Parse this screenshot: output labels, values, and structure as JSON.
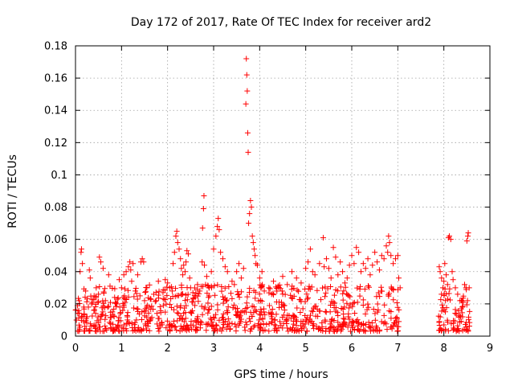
{
  "chart_data": {
    "type": "scatter",
    "title": "Day 172 of 2017, Rate Of TEC Index for receiver ard2",
    "xlabel": "GPS time / hours",
    "ylabel": "ROTI / TECUs",
    "xlim": [
      0,
      9
    ],
    "ylim": [
      0,
      0.18
    ],
    "x_ticks": [
      0,
      1,
      2,
      3,
      4,
      5,
      6,
      7,
      8,
      9
    ],
    "x_tick_labels": [
      "0",
      "1",
      "2",
      "3",
      "4",
      "5",
      "6",
      "7",
      "8",
      "9"
    ],
    "y_ticks": [
      0,
      0.02,
      0.04,
      0.06,
      0.08,
      0.1,
      0.12,
      0.14,
      0.16,
      0.18
    ],
    "y_tick_labels": [
      "0",
      "0.02",
      "0.04",
      "0.06",
      "0.08",
      "0.1",
      "0.12",
      "0.14",
      "0.16",
      "0.18"
    ],
    "grid": true,
    "marker": "plus",
    "series_color": "#ff0000",
    "series": [
      {
        "name": "ROTI",
        "points": [
          [
            0.02,
            0.01
          ],
          [
            0.05,
            0.014
          ],
          [
            0.08,
            0.022
          ],
          [
            0.1,
            0.04
          ],
          [
            0.12,
            0.052
          ],
          [
            0.13,
            0.054
          ],
          [
            0.15,
            0.045
          ],
          [
            0.18,
            0.018
          ],
          [
            0.22,
            0.028
          ],
          [
            0.25,
            0.012
          ],
          [
            0.3,
            0.041
          ],
          [
            0.32,
            0.036
          ],
          [
            0.35,
            0.02
          ],
          [
            0.4,
            0.016
          ],
          [
            0.45,
            0.03
          ],
          [
            0.5,
            0.026
          ],
          [
            0.52,
            0.049
          ],
          [
            0.55,
            0.046
          ],
          [
            0.6,
            0.042
          ],
          [
            0.65,
            0.022
          ],
          [
            0.7,
            0.018
          ],
          [
            0.72,
            0.038
          ],
          [
            0.75,
            0.031
          ],
          [
            0.8,
            0.015
          ],
          [
            0.85,
            0.024
          ],
          [
            0.9,
            0.02
          ],
          [
            0.95,
            0.035
          ],
          [
            1.0,
            0.03
          ],
          [
            1.05,
            0.038
          ],
          [
            1.1,
            0.04
          ],
          [
            1.15,
            0.043
          ],
          [
            1.18,
            0.046
          ],
          [
            1.2,
            0.041
          ],
          [
            1.22,
            0.034
          ],
          [
            1.25,
            0.045
          ],
          [
            1.3,
            0.028
          ],
          [
            1.35,
            0.038
          ],
          [
            1.4,
            0.025
          ],
          [
            1.42,
            0.046
          ],
          [
            1.45,
            0.048
          ],
          [
            1.48,
            0.046
          ],
          [
            1.5,
            0.022
          ],
          [
            1.55,
            0.03
          ],
          [
            1.6,
            0.018
          ],
          [
            1.7,
            0.026
          ],
          [
            1.75,
            0.022
          ],
          [
            1.8,
            0.034
          ],
          [
            1.9,
            0.027
          ],
          [
            1.95,
            0.035
          ],
          [
            2.0,
            0.033
          ],
          [
            2.05,
            0.03
          ],
          [
            2.1,
            0.028
          ],
          [
            2.12,
            0.045
          ],
          [
            2.15,
            0.052
          ],
          [
            2.18,
            0.062
          ],
          [
            2.2,
            0.065
          ],
          [
            2.22,
            0.058
          ],
          [
            2.25,
            0.054
          ],
          [
            2.28,
            0.048
          ],
          [
            2.3,
            0.042
          ],
          [
            2.33,
            0.038
          ],
          [
            2.35,
            0.044
          ],
          [
            2.38,
            0.04
          ],
          [
            2.4,
            0.046
          ],
          [
            2.42,
            0.053
          ],
          [
            2.45,
            0.051
          ],
          [
            2.48,
            0.036
          ],
          [
            2.5,
            0.03
          ],
          [
            2.55,
            0.027
          ],
          [
            2.6,
            0.024
          ],
          [
            2.65,
            0.032
          ],
          [
            2.7,
            0.028
          ],
          [
            2.75,
            0.046
          ],
          [
            2.76,
            0.067
          ],
          [
            2.78,
            0.079
          ],
          [
            2.79,
            0.087
          ],
          [
            2.8,
            0.044
          ],
          [
            2.85,
            0.037
          ],
          [
            2.9,
            0.03
          ],
          [
            2.95,
            0.04
          ],
          [
            3.0,
            0.054
          ],
          [
            3.05,
            0.062
          ],
          [
            3.08,
            0.068
          ],
          [
            3.1,
            0.073
          ],
          [
            3.12,
            0.066
          ],
          [
            3.15,
            0.052
          ],
          [
            3.2,
            0.048
          ],
          [
            3.25,
            0.043
          ],
          [
            3.3,
            0.04
          ],
          [
            3.4,
            0.034
          ],
          [
            3.45,
            0.032
          ],
          [
            3.5,
            0.04
          ],
          [
            3.55,
            0.045
          ],
          [
            3.6,
            0.036
          ],
          [
            3.65,
            0.042
          ],
          [
            3.7,
            0.144
          ],
          [
            3.71,
            0.172
          ],
          [
            3.72,
            0.162
          ],
          [
            3.73,
            0.152
          ],
          [
            3.74,
            0.126
          ],
          [
            3.75,
            0.114
          ],
          [
            3.76,
            0.07
          ],
          [
            3.78,
            0.076
          ],
          [
            3.8,
            0.084
          ],
          [
            3.82,
            0.08
          ],
          [
            3.84,
            0.062
          ],
          [
            3.86,
            0.058
          ],
          [
            3.88,
            0.054
          ],
          [
            3.9,
            0.05
          ],
          [
            3.92,
            0.045
          ],
          [
            3.95,
            0.044
          ],
          [
            4.0,
            0.036
          ],
          [
            4.05,
            0.04
          ],
          [
            4.1,
            0.028
          ],
          [
            4.2,
            0.03
          ],
          [
            4.3,
            0.034
          ],
          [
            4.4,
            0.031
          ],
          [
            4.5,
            0.037
          ],
          [
            4.6,
            0.032
          ],
          [
            4.7,
            0.04
          ],
          [
            4.8,
            0.036
          ],
          [
            4.9,
            0.033
          ],
          [
            5.0,
            0.042
          ],
          [
            5.05,
            0.046
          ],
          [
            5.1,
            0.054
          ],
          [
            5.15,
            0.04
          ],
          [
            5.2,
            0.038
          ],
          [
            5.3,
            0.045
          ],
          [
            5.38,
            0.061
          ],
          [
            5.4,
            0.043
          ],
          [
            5.45,
            0.048
          ],
          [
            5.5,
            0.042
          ],
          [
            5.55,
            0.036
          ],
          [
            5.6,
            0.055
          ],
          [
            5.65,
            0.049
          ],
          [
            5.7,
            0.038
          ],
          [
            5.75,
            0.046
          ],
          [
            5.8,
            0.04
          ],
          [
            5.85,
            0.033
          ],
          [
            5.9,
            0.036
          ],
          [
            5.95,
            0.044
          ],
          [
            6.0,
            0.05
          ],
          [
            6.05,
            0.045
          ],
          [
            6.1,
            0.055
          ],
          [
            6.15,
            0.052
          ],
          [
            6.2,
            0.04
          ],
          [
            6.25,
            0.045
          ],
          [
            6.3,
            0.042
          ],
          [
            6.35,
            0.048
          ],
          [
            6.4,
            0.038
          ],
          [
            6.45,
            0.044
          ],
          [
            6.5,
            0.052
          ],
          [
            6.55,
            0.046
          ],
          [
            6.6,
            0.041
          ],
          [
            6.65,
            0.05
          ],
          [
            6.7,
            0.048
          ],
          [
            6.75,
            0.056
          ],
          [
            6.78,
            0.052
          ],
          [
            6.8,
            0.062
          ],
          [
            6.82,
            0.058
          ],
          [
            6.85,
            0.05
          ],
          [
            6.9,
            0.045
          ],
          [
            6.95,
            0.048
          ],
          [
            7.0,
            0.05
          ],
          [
            7.02,
            0.036
          ],
          [
            7.05,
            0.03
          ],
          [
            7.9,
            0.043
          ],
          [
            7.92,
            0.04
          ],
          [
            7.95,
            0.036
          ],
          [
            7.98,
            0.03
          ],
          [
            8.0,
            0.034
          ],
          [
            8.02,
            0.045
          ],
          [
            8.05,
            0.038
          ],
          [
            8.08,
            0.032
          ],
          [
            8.1,
            0.061
          ],
          [
            8.12,
            0.062
          ],
          [
            8.15,
            0.06
          ],
          [
            8.18,
            0.04
          ],
          [
            8.2,
            0.035
          ],
          [
            8.25,
            0.03
          ],
          [
            8.3,
            0.026
          ],
          [
            8.35,
            0.022
          ],
          [
            8.4,
            0.018
          ],
          [
            8.45,
            0.032
          ],
          [
            8.48,
            0.03
          ],
          [
            8.5,
            0.059
          ],
          [
            8.52,
            0.062
          ],
          [
            8.53,
            0.064
          ],
          [
            8.55,
            0.03
          ]
        ]
      }
    ],
    "bands": [
      {
        "x_from": 0.0,
        "x_to": 7.05,
        "y_low": 0.003,
        "y_high": 0.032
      },
      {
        "x_from": 7.88,
        "x_to": 8.56,
        "y_low": 0.003,
        "y_high": 0.03
      }
    ]
  }
}
